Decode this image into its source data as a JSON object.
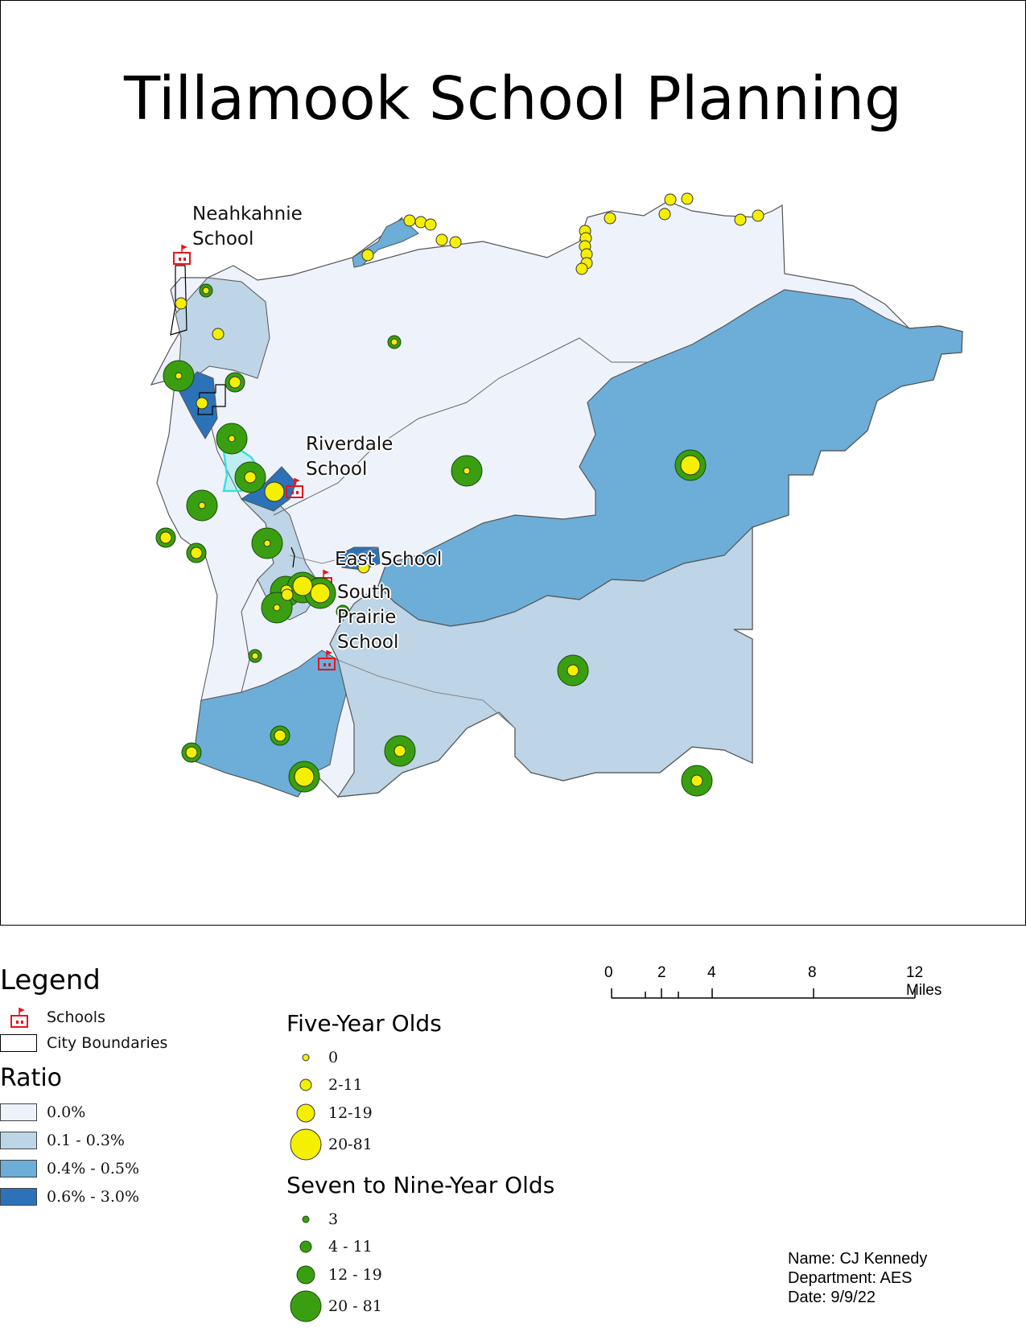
{
  "map": {
    "title": "Tillamook School Planning",
    "colors": {
      "ratio_0": "#eef2fb",
      "ratio_1": "#bdd5e6",
      "ratio_2": "#6caed8",
      "ratio_3": "#2c72b8",
      "five_year": "#f5ef00",
      "seven_nine": "#3a9f10",
      "school_icon": "#e8141c",
      "city_boundary": "#000000",
      "highlight": "#38e0e0"
    },
    "school_labels": {
      "neahkahnie": [
        "Neahkahnie",
        "School"
      ],
      "riverdale": [
        "Riverdale",
        "School"
      ],
      "east": [
        "East School"
      ],
      "south_prairie": [
        "South",
        "Prairie",
        "School"
      ]
    }
  },
  "legend": {
    "title": "Legend",
    "schools_label": "Schools",
    "city_boundaries_label": "City Boundaries",
    "ratio_title": "Ratio",
    "ratio_classes": [
      "0.0%",
      "0.1 - 0.3%",
      "0.4% - 0.5%",
      "0.6% - 3.0%"
    ],
    "five_year_title": "Five-Year Olds",
    "five_year_classes": [
      "0",
      "2-11",
      "12-19",
      "20-81"
    ],
    "seven_nine_title": "Seven to Nine-Year Olds",
    "seven_nine_classes": [
      "3",
      "4 - 11",
      "12 - 19",
      "20 - 81"
    ]
  },
  "scale_bar": {
    "labels": [
      "0",
      "2",
      "4",
      "8",
      "12 Miles"
    ]
  },
  "credits": {
    "name": "Name: CJ Kennedy",
    "department": "Department: AES",
    "date": "Date: 9/9/22"
  }
}
